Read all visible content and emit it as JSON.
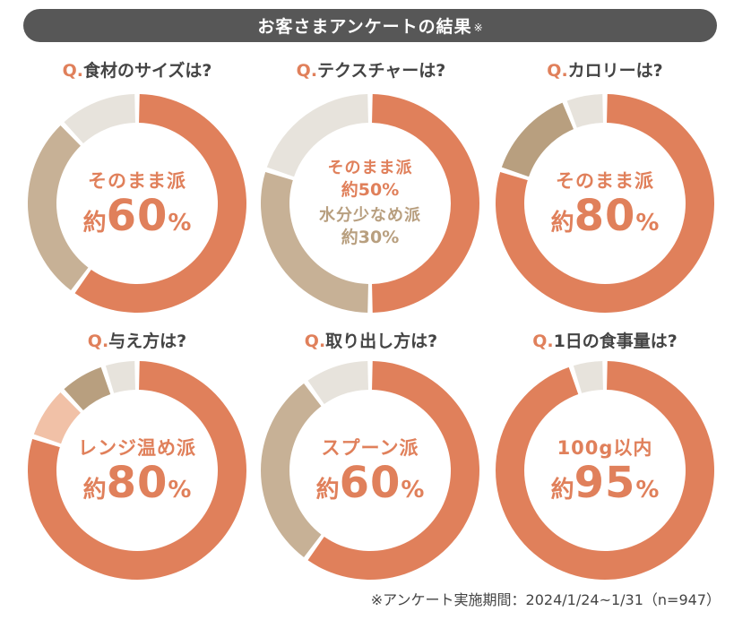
{
  "banner": {
    "title": "お客さまアンケートの結果",
    "mark": "※"
  },
  "colors": {
    "primary": "#e0805b",
    "secondary": "#c7b196",
    "tertiary": "#b89f7f",
    "other": "#e7e3dc",
    "light": "#f1c1a7",
    "banner": "#575757",
    "text": "#444444"
  },
  "chart_data": [
    {
      "type": "pie",
      "title": "Q.食材のサイズは?",
      "slices": [
        {
          "label": "そのまま派",
          "value": 60
        },
        {
          "label": "",
          "value": 28
        },
        {
          "label": "",
          "value": 12
        }
      ],
      "center_label": "そのまま派",
      "center_value": "約60%"
    },
    {
      "type": "pie",
      "title": "Q.テクスチャーは?",
      "slices": [
        {
          "label": "そのまま派",
          "value": 50
        },
        {
          "label": "水分少なめ派",
          "value": 30
        },
        {
          "label": "",
          "value": 20
        }
      ],
      "center_label": "そのまま派",
      "center_value": "約50%",
      "center_label_2": "水分少なめ派",
      "center_value_2": "約30%"
    },
    {
      "type": "pie",
      "title": "Q.カロリーは?",
      "slices": [
        {
          "label": "そのまま派",
          "value": 80
        },
        {
          "label": "",
          "value": 14
        },
        {
          "label": "",
          "value": 6
        }
      ],
      "center_label": "そのまま派",
      "center_value": "約80%"
    },
    {
      "type": "pie",
      "title": "Q.与え方は?",
      "slices": [
        {
          "label": "レンジ温め派",
          "value": 80
        },
        {
          "label": "",
          "value": 8
        },
        {
          "label": "",
          "value": 7
        },
        {
          "label": "",
          "value": 5
        }
      ],
      "center_label": "レンジ温め派",
      "center_value": "約80%"
    },
    {
      "type": "pie",
      "title": "Q.取り出し方は?",
      "slices": [
        {
          "label": "スプーン派",
          "value": 60
        },
        {
          "label": "",
          "value": 30
        },
        {
          "label": "",
          "value": 10
        }
      ],
      "center_label": "スプーン派",
      "center_value": "約60%"
    },
    {
      "type": "pie",
      "title": "Q.1日の食事量は?",
      "slices": [
        {
          "label": "100g以内",
          "value": 95
        },
        {
          "label": "",
          "value": 5
        }
      ],
      "center_label": "100g以内",
      "center_value": "約95%"
    }
  ],
  "charts": [
    {
      "title_prefix": "Q.",
      "title_text": "食材のサイズは?",
      "label": "そのまま派",
      "val_prefix": "約",
      "val_num": "60",
      "val_suffix": "%",
      "slice_colors": [
        "#e0805b",
        "#c7b196",
        "#e7e3dc"
      ]
    },
    {
      "title_prefix": "Q.",
      "title_text": "テクスチャーは?",
      "label": "そのまま派",
      "val_text": "約50%",
      "label2": "水分少なめ派",
      "val2_text": "約30%",
      "slice_colors": [
        "#e0805b",
        "#c7b196",
        "#e7e3dc"
      ]
    },
    {
      "title_prefix": "Q.",
      "title_text": "カロリーは?",
      "label": "そのまま派",
      "val_prefix": "約",
      "val_num": "80",
      "val_suffix": "%",
      "slice_colors": [
        "#e0805b",
        "#b89f7f",
        "#e7e3dc"
      ]
    },
    {
      "title_prefix": "Q.",
      "title_text": "与え方は?",
      "label": "レンジ温め派",
      "val_prefix": "約",
      "val_num": "80",
      "val_suffix": "%",
      "slice_colors": [
        "#e0805b",
        "#f1c1a7",
        "#b89f7f",
        "#e7e3dc"
      ]
    },
    {
      "title_prefix": "Q.",
      "title_text": "取り出し方は?",
      "label": "スプーン派",
      "val_prefix": "約",
      "val_num": "60",
      "val_suffix": "%",
      "slice_colors": [
        "#e0805b",
        "#c7b196",
        "#e7e3dc"
      ]
    },
    {
      "title_prefix": "Q.",
      "title_text": "1日の食事量は?",
      "label": "100g以内",
      "val_prefix": "約",
      "val_num": "95",
      "val_suffix": "%",
      "slice_colors": [
        "#e0805b",
        "#e7e3dc"
      ]
    }
  ],
  "footnote": "※アンケート実施期間：2024/1/24~1/31（n=947）"
}
